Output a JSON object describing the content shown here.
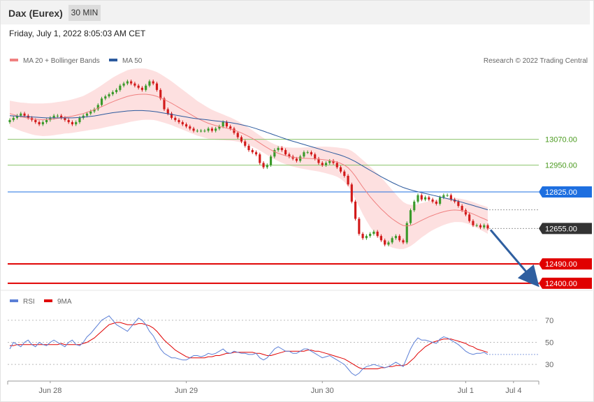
{
  "header": {
    "instrument": "Dax (Eurex)",
    "timeframe": "30 MIN",
    "datetime": "Friday, July 1, 2022 8:05:03 AM CET",
    "credit": "Research © 2022 Trading Central"
  },
  "colors": {
    "ma20": "#f08080",
    "bollinger_fill": "#fde0e0",
    "ma50": "#2c5a9e",
    "candle_up": "#3a9a2a",
    "candle_down": "#d21a1a",
    "resistance": "#8ac36a",
    "pivot": "#1e6fe0",
    "support": "#e00000",
    "current": "#333333",
    "rsi": "#5b7fd6",
    "rsi_ma": "#e00000",
    "arrow": "#2f5fa0"
  },
  "chart_data": [
    {
      "type": "candlestick",
      "legend": [
        {
          "name": "MA 20 + Bollinger Bands",
          "color": "#f08080"
        },
        {
          "name": "MA 50",
          "color": "#2c5a9e"
        }
      ],
      "ylim": [
        12380,
        13410
      ],
      "x_ticks": [
        {
          "label": "Jun 28",
          "index": 11
        },
        {
          "label": "Jun 29",
          "index": 48
        },
        {
          "label": "Jun 30",
          "index": 85
        },
        {
          "label": "Jul 1",
          "index": 124
        },
        {
          "label": "Jul 4",
          "index": 137
        }
      ],
      "levels": [
        {
          "value": 13070,
          "label": "13070.00",
          "style": "resistance"
        },
        {
          "value": 12950,
          "label": "12950.00",
          "style": "resistance"
        },
        {
          "value": 12825,
          "label": "12825.00",
          "style": "pivot"
        },
        {
          "value": 12655,
          "label": "12655.00",
          "style": "current"
        },
        {
          "value": 12490,
          "label": "12490.00",
          "style": "support"
        },
        {
          "value": 12400,
          "label": "12400.00",
          "style": "support"
        }
      ],
      "close": [
        13160,
        13170,
        13180,
        13190,
        13180,
        13170,
        13160,
        13150,
        13140,
        13150,
        13160,
        13170,
        13180,
        13180,
        13170,
        13160,
        13150,
        13140,
        13150,
        13170,
        13180,
        13190,
        13200,
        13210,
        13230,
        13260,
        13270,
        13280,
        13290,
        13300,
        13320,
        13330,
        13340,
        13330,
        13320,
        13310,
        13300,
        13320,
        13340,
        13330,
        13300,
        13260,
        13210,
        13190,
        13170,
        13160,
        13150,
        13140,
        13130,
        13120,
        13110,
        13110,
        13110,
        13110,
        13120,
        13110,
        13120,
        13130,
        13150,
        13130,
        13120,
        13100,
        13080,
        13060,
        13040,
        13020,
        13010,
        13000,
        12960,
        12940,
        12950,
        12990,
        13020,
        13030,
        13020,
        13000,
        12990,
        12980,
        12970,
        12990,
        13010,
        13010,
        13000,
        12980,
        12960,
        12950,
        12960,
        12970,
        12960,
        12940,
        12920,
        12900,
        12860,
        12780,
        12700,
        12630,
        12610,
        12620,
        12630,
        12640,
        12620,
        12600,
        12580,
        12590,
        12610,
        12620,
        12600,
        12590,
        12680,
        12740,
        12780,
        12810,
        12790,
        12800,
        12790,
        12780,
        12770,
        12800,
        12810,
        12810,
        12790,
        12780,
        12760,
        12740,
        12720,
        12690,
        12670,
        12670,
        12660,
        12670,
        12655
      ],
      "open": [
        13150,
        13160,
        13170,
        13180,
        13190,
        13180,
        13170,
        13160,
        13150,
        13140,
        13150,
        13160,
        13170,
        13180,
        13180,
        13170,
        13160,
        13150,
        13140,
        13150,
        13170,
        13180,
        13190,
        13200,
        13210,
        13230,
        13260,
        13270,
        13280,
        13290,
        13300,
        13320,
        13330,
        13340,
        13330,
        13320,
        13310,
        13300,
        13320,
        13340,
        13330,
        13300,
        13260,
        13210,
        13190,
        13170,
        13160,
        13150,
        13140,
        13130,
        13120,
        13110,
        13110,
        13110,
        13110,
        13120,
        13110,
        13120,
        13130,
        13150,
        13130,
        13120,
        13100,
        13080,
        13060,
        13040,
        13020,
        13010,
        13000,
        12960,
        12940,
        12950,
        12990,
        13020,
        13030,
        13020,
        13000,
        12990,
        12980,
        12970,
        12990,
        13010,
        13010,
        13000,
        12980,
        12960,
        12950,
        12960,
        12970,
        12960,
        12940,
        12920,
        12900,
        12860,
        12780,
        12700,
        12630,
        12610,
        12620,
        12630,
        12640,
        12620,
        12600,
        12580,
        12590,
        12610,
        12620,
        12600,
        12590,
        12680,
        12740,
        12780,
        12810,
        12790,
        12800,
        12790,
        12780,
        12770,
        12800,
        12810,
        12810,
        12790,
        12780,
        12760,
        12740,
        12720,
        12690,
        12670,
        12670,
        12660,
        12670
      ],
      "ma20": [
        13190,
        13185,
        13180,
        13175,
        13172,
        13168,
        13165,
        13163,
        13162,
        13161,
        13162,
        13163,
        13165,
        13168,
        13170,
        13173,
        13175,
        13178,
        13182,
        13186,
        13190,
        13196,
        13202,
        13208,
        13215,
        13222,
        13230,
        13238,
        13245,
        13252,
        13258,
        13264,
        13270,
        13274,
        13277,
        13279,
        13280,
        13280,
        13278,
        13275,
        13270,
        13263,
        13255,
        13247,
        13238,
        13228,
        13218,
        13208,
        13198,
        13188,
        13178,
        13168,
        13160,
        13152,
        13145,
        13139,
        13134,
        13130,
        13126,
        13122,
        13118,
        13113,
        13107,
        13100,
        13092,
        13083,
        13074,
        13064,
        13053,
        13042,
        13031,
        13021,
        13012,
        13005,
        12999,
        12994,
        12990,
        12987,
        12985,
        12983,
        12982,
        12981,
        12980,
        12979,
        12978,
        12976,
        12974,
        12971,
        12968,
        12964,
        12958,
        12950,
        12938,
        12920,
        12898,
        12873,
        12848,
        12825,
        12803,
        12783,
        12764,
        12746,
        12730,
        12714,
        12700,
        12688,
        12677,
        12669,
        12667,
        12669,
        12675,
        12684,
        12693,
        12701,
        12709,
        12716,
        12722,
        12728,
        12733,
        12737,
        12740,
        12741,
        12740,
        12738,
        12734,
        12729,
        12722,
        12715,
        12707,
        12700,
        12692
      ],
      "ma50": [
        13180,
        13179,
        13178,
        13177,
        13176,
        13175,
        13174,
        13173,
        13172,
        13171,
        13170,
        13170,
        13170,
        13170,
        13170,
        13170,
        13170,
        13170,
        13171,
        13172,
        13173,
        13175,
        13177,
        13179,
        13182,
        13185,
        13188,
        13191,
        13194,
        13196,
        13198,
        13200,
        13202,
        13203,
        13204,
        13204,
        13204,
        13203,
        13202,
        13200,
        13198,
        13195,
        13192,
        13189,
        13186,
        13183,
        13180,
        13177,
        13174,
        13171,
        13168,
        13166,
        13164,
        13162,
        13160,
        13158,
        13156,
        13154,
        13152,
        13150,
        13148,
        13145,
        13142,
        13138,
        13134,
        13130,
        13125,
        13120,
        13114,
        13108,
        13102,
        13096,
        13090,
        13084,
        13078,
        13072,
        13066,
        13061,
        13056,
        13051,
        13046,
        13041,
        13036,
        13031,
        13026,
        13021,
        13016,
        13011,
        13006,
        13001,
        12996,
        12990,
        12983,
        12975,
        12966,
        12956,
        12946,
        12936,
        12926,
        12916,
        12906,
        12896,
        12887,
        12878,
        12869,
        12861,
        12853,
        12846,
        12840,
        12835,
        12830,
        12826,
        12822,
        12818,
        12814,
        12810,
        12806,
        12802,
        12798,
        12794,
        12790,
        12786,
        12782,
        12777,
        12772,
        12767,
        12762,
        12757,
        12752,
        12747,
        12742
      ],
      "bb_half": [
        60,
        62,
        64,
        66,
        68,
        70,
        72,
        74,
        75,
        76,
        76,
        76,
        76,
        76,
        76,
        76,
        77,
        78,
        79,
        80,
        82,
        85,
        88,
        92,
        96,
        100,
        104,
        108,
        112,
        115,
        118,
        120,
        122,
        122,
        122,
        121,
        120,
        119,
        117,
        115,
        113,
        111,
        108,
        105,
        102,
        99,
        96,
        93,
        90,
        87,
        84,
        81,
        78,
        75,
        72,
        69,
        66,
        63,
        60,
        57,
        54,
        51,
        48,
        45,
        42,
        40,
        38,
        36,
        35,
        34,
        34,
        34,
        35,
        36,
        38,
        40,
        42,
        44,
        46,
        48,
        50,
        52,
        54,
        56,
        58,
        60,
        62,
        64,
        66,
        68,
        72,
        78,
        86,
        96,
        106,
        116,
        126,
        134,
        140,
        144,
        146,
        146,
        144,
        140,
        134,
        126,
        118,
        110,
        102,
        96,
        90,
        85,
        80,
        76,
        72,
        69,
        66,
        64,
        62,
        60,
        58,
        56,
        55,
        54,
        54,
        55,
        56,
        57,
        58,
        60,
        62
      ]
    },
    {
      "type": "line",
      "legend": [
        {
          "name": "RSI",
          "color": "#5b7fd6"
        },
        {
          "name": "9MA",
          "color": "#e00000"
        }
      ],
      "ylim": [
        20,
        80
      ],
      "y_ticks": [
        70,
        50,
        30
      ],
      "rsi": [
        44,
        50,
        48,
        46,
        50,
        52,
        48,
        46,
        50,
        48,
        47,
        50,
        52,
        50,
        48,
        46,
        50,
        52,
        48,
        47,
        50,
        55,
        58,
        62,
        66,
        70,
        72,
        74,
        70,
        66,
        64,
        62,
        60,
        64,
        68,
        72,
        70,
        66,
        60,
        56,
        50,
        44,
        40,
        38,
        36,
        36,
        35,
        34,
        34,
        36,
        38,
        38,
        37,
        38,
        40,
        39,
        40,
        42,
        44,
        41,
        40,
        42,
        41,
        40,
        40,
        39,
        39,
        40,
        36,
        34,
        36,
        40,
        44,
        46,
        44,
        42,
        42,
        40,
        40,
        42,
        44,
        44,
        42,
        40,
        38,
        36,
        37,
        38,
        36,
        34,
        32,
        30,
        26,
        22,
        20,
        22,
        26,
        28,
        29,
        30,
        29,
        28,
        27,
        28,
        30,
        32,
        30,
        28,
        36,
        44,
        50,
        54,
        52,
        52,
        51,
        50,
        49,
        53,
        55,
        54,
        52,
        50,
        48,
        45,
        42,
        40,
        39,
        40,
        40,
        41,
        39
      ],
      "ma9": [
        47,
        47,
        48,
        48,
        48,
        48,
        48,
        48,
        48,
        48,
        48,
        48,
        48,
        48,
        49,
        48,
        48,
        48,
        48,
        48,
        49,
        50,
        52,
        54,
        57,
        60,
        63,
        66,
        67,
        68,
        68,
        67,
        66,
        66,
        66,
        67,
        67,
        66,
        65,
        63,
        60,
        56,
        52,
        49,
        46,
        43,
        41,
        39,
        37,
        36,
        36,
        36,
        36,
        36,
        37,
        37,
        38,
        38,
        39,
        40,
        40,
        41,
        41,
        41,
        41,
        41,
        41,
        40,
        40,
        39,
        38,
        38,
        39,
        40,
        41,
        42,
        42,
        42,
        42,
        42,
        42,
        43,
        43,
        42,
        42,
        41,
        40,
        39,
        38,
        37,
        36,
        35,
        33,
        31,
        29,
        27,
        26,
        26,
        26,
        26,
        26,
        27,
        27,
        28,
        28,
        29,
        29,
        29,
        30,
        33,
        36,
        40,
        43,
        46,
        48,
        50,
        51,
        52,
        53,
        53,
        53,
        52,
        51,
        50,
        49,
        47,
        46,
        44,
        43,
        42,
        41
      ]
    }
  ]
}
